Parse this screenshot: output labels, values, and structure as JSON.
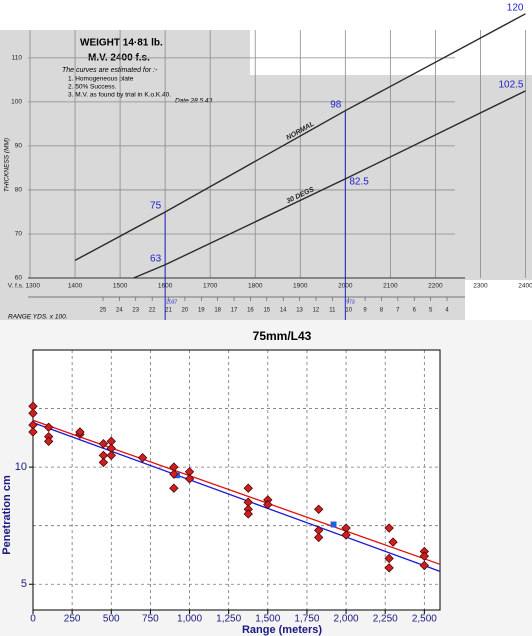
{
  "chart_data": [
    {
      "type": "line",
      "title": "WEIGHT 14·81 lb.",
      "subtitle": "M.V. 2400 f.s.",
      "notes": [
        "The curves are estimated for :-",
        "1.  Homogeneous plate",
        "2.  50% Success.",
        "3.  M.V. as found by trial in K.o.K.40."
      ],
      "date": "Date 28.5.43.",
      "ylabel": "THICKNESS (MM)",
      "xlabel": "RANGE YDS. x 100.",
      "xlim": [
        1280,
        2410
      ],
      "ylim": [
        60,
        122
      ],
      "xticks": [
        {
          "value": 1300,
          "label": "V. f.s. 1300"
        },
        1400,
        1500,
        1600,
        1700,
        1800,
        1900,
        2000,
        2100,
        2200,
        2300,
        2400
      ],
      "yticks": [
        60,
        70,
        80,
        90,
        100,
        110
      ],
      "grid": true,
      "series": [
        {
          "name": "NORMAL",
          "color": "#2a2a2a",
          "x": [
            1400,
            1600,
            2000,
            2400
          ],
          "values": [
            64,
            75,
            98,
            120
          ],
          "labeled": [
            false,
            true,
            true,
            true
          ]
        },
        {
          "name": "30 DEGS",
          "color": "#2a2a2a",
          "x": [
            1530,
            1600,
            2000,
            2400
          ],
          "values": [
            60,
            63,
            82.5,
            102.5
          ],
          "labeled": [
            false,
            true,
            true,
            true
          ]
        }
      ],
      "label_color": "#1f1fc8",
      "drop_lines": [
        1600,
        2000
      ],
      "range_annotations": [
        {
          "x": 1600,
          "text": "2037"
        },
        {
          "x": 2000,
          "text": "973"
        }
      ],
      "range_ticks": [
        25,
        24,
        23,
        22,
        21,
        20,
        19,
        18,
        17,
        16,
        15,
        14,
        13,
        12,
        11,
        10,
        9,
        8,
        7,
        6,
        5,
        4
      ]
    },
    {
      "type": "scatter",
      "title": "75mm/L43",
      "xlabel": "Range (meters)",
      "ylabel": "Penetration cm",
      "xlim": [
        0,
        2600
      ],
      "ylim": [
        3.9,
        15
      ],
      "xticks": [
        0,
        250,
        500,
        750,
        {
          "value": 1000,
          "label": "1,000"
        },
        {
          "value": 1250,
          "label": "1,250"
        },
        {
          "value": 1500,
          "label": "1,500"
        },
        {
          "value": 1750,
          "label": "1,750"
        },
        {
          "value": 2000,
          "label": "2,000"
        },
        {
          "value": 2250,
          "label": "2,250"
        },
        {
          "value": 2500,
          "label": "2,500"
        }
      ],
      "yticks": [
        5,
        10
      ],
      "minor_yticks": [
        7.5,
        12.5,
        15
      ],
      "grid": true,
      "series": [
        {
          "mode": "diamond",
          "color": "#cc1f1f",
          "x": [
            0,
            0,
            0,
            0,
            100,
            100,
            100,
            300,
            300,
            450,
            450,
            450,
            500,
            500,
            500,
            700,
            900,
            900,
            900,
            1000,
            1000,
            1375,
            1375,
            1375,
            1375,
            1500,
            1500,
            1825,
            1825,
            1825,
            2000,
            2000,
            2275,
            2275,
            2275,
            2300,
            2500,
            2500,
            2500
          ],
          "values": [
            12.6,
            12.3,
            11.8,
            11.5,
            11.7,
            11.3,
            11.1,
            11.4,
            11.5,
            11.0,
            10.5,
            10.2,
            11.1,
            10.8,
            10.5,
            10.4,
            10.0,
            9.7,
            9.1,
            9.8,
            9.5,
            9.1,
            8.5,
            8.2,
            8.0,
            8.6,
            8.4,
            8.2,
            7.3,
            7.0,
            7.4,
            7.1,
            7.4,
            6.1,
            5.7,
            6.8,
            6.4,
            6.2,
            5.8
          ]
        },
        {
          "mode": "line",
          "color": "#e01010",
          "x": [
            0,
            2600
          ],
          "values": [
            12.0,
            5.85
          ]
        },
        {
          "mode": "line",
          "color": "#1a1ad0",
          "x": [
            0,
            2600
          ],
          "values": [
            11.9,
            5.55
          ]
        },
        {
          "mode": "square",
          "color": "#2060e0",
          "x": [
            920,
            1920
          ],
          "values": [
            9.65,
            7.55
          ]
        }
      ]
    }
  ]
}
